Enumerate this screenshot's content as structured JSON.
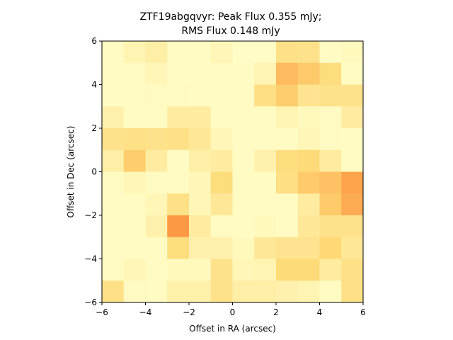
{
  "chart_data": {
    "type": "heatmap",
    "title_lines": [
      "ZTF19abgqvyr: Peak Flux 0.355 mJy;",
      "RMS Flux 0.148 mJy"
    ],
    "xlabel": "Offset in RA (arcsec)",
    "ylabel": "Offset in Dec (arcsec)",
    "xlim": [
      -6,
      6
    ],
    "ylim": [
      -6,
      6
    ],
    "x_ticks": [
      -6,
      -4,
      -2,
      0,
      2,
      4,
      6
    ],
    "y_ticks": [
      -6,
      -4,
      -2,
      0,
      2,
      4,
      6
    ],
    "tick_labels": [
      "−6",
      "−4",
      "−2",
      "0",
      "2",
      "4",
      "6"
    ],
    "grid": false,
    "colormap_low": "#ffffcc",
    "colormap_mid": "#fed976",
    "colormap_high": "#fd8d3c",
    "vmin": 0,
    "vmax": 1,
    "cells": [
      [
        0.05,
        0.15,
        0.22,
        0.05,
        0.05,
        0.12,
        0.04,
        0.04,
        0.4,
        0.38,
        0.05,
        0.08
      ],
      [
        0.06,
        0.06,
        0.12,
        0.05,
        0.05,
        0.05,
        0.05,
        0.15,
        0.7,
        0.6,
        0.45,
        0.05
      ],
      [
        0.05,
        0.05,
        0.06,
        0.06,
        0.05,
        0.05,
        0.05,
        0.42,
        0.58,
        0.35,
        0.38,
        0.38
      ],
      [
        0.18,
        0.05,
        0.05,
        0.25,
        0.25,
        0.05,
        0.05,
        0.05,
        0.15,
        0.08,
        0.06,
        0.25
      ],
      [
        0.38,
        0.4,
        0.38,
        0.4,
        0.3,
        0.12,
        0.05,
        0.05,
        0.05,
        0.12,
        0.06,
        0.05
      ],
      [
        0.22,
        0.58,
        0.25,
        0.05,
        0.22,
        0.25,
        0.05,
        0.18,
        0.45,
        0.48,
        0.25,
        0.05
      ],
      [
        0.05,
        0.12,
        0.05,
        0.05,
        0.12,
        0.45,
        0.05,
        0.05,
        0.42,
        0.6,
        0.65,
        0.85
      ],
      [
        0.05,
        0.05,
        0.12,
        0.4,
        0.12,
        0.3,
        0.05,
        0.05,
        0.05,
        0.25,
        0.6,
        0.8
      ],
      [
        0.05,
        0.05,
        0.18,
        0.92,
        0.25,
        0.05,
        0.05,
        0.08,
        0.05,
        0.3,
        0.38,
        0.38
      ],
      [
        0.05,
        0.05,
        0.05,
        0.45,
        0.18,
        0.18,
        0.08,
        0.3,
        0.35,
        0.35,
        0.5,
        0.3
      ],
      [
        0.05,
        0.12,
        0.05,
        0.08,
        0.08,
        0.38,
        0.12,
        0.15,
        0.48,
        0.48,
        0.25,
        0.4
      ],
      [
        0.4,
        0.06,
        0.05,
        0.2,
        0.2,
        0.38,
        0.22,
        0.22,
        0.18,
        0.15,
        0.05,
        0.4
      ]
    ]
  }
}
